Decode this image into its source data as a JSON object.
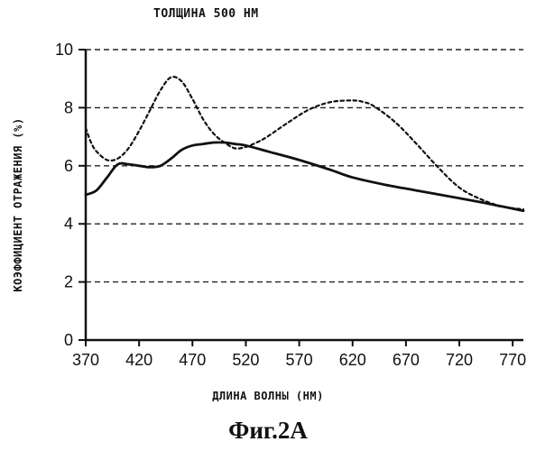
{
  "chart_data": {
    "type": "line",
    "title": "ТОЛЩИНА 500 НМ",
    "xlabel": "ДЛИНА ВОЛНЫ (НМ)",
    "ylabel": "КОЭФФИЦИЕНТ ОТРАЖЕНИЯ (%)",
    "caption": "Фиг.2А",
    "xlim": [
      370,
      780
    ],
    "ylim": [
      0,
      10
    ],
    "x_ticks": [
      370,
      420,
      470,
      520,
      570,
      620,
      670,
      720,
      770
    ],
    "y_ticks": [
      0,
      2,
      4,
      6,
      8,
      10
    ],
    "grid": "horizontal dashed",
    "series": [
      {
        "style": "solid",
        "color": "#111111",
        "x": [
          370,
          380,
          390,
          400,
          410,
          420,
          430,
          440,
          450,
          460,
          470,
          480,
          490,
          500,
          510,
          520,
          540,
          570,
          600,
          620,
          650,
          680,
          710,
          740,
          760,
          780
        ],
        "y": [
          5.0,
          5.15,
          5.6,
          6.05,
          6.05,
          6.0,
          5.95,
          6.0,
          6.25,
          6.55,
          6.7,
          6.75,
          6.8,
          6.8,
          6.75,
          6.7,
          6.5,
          6.2,
          5.85,
          5.6,
          5.35,
          5.15,
          4.95,
          4.75,
          4.6,
          4.45
        ]
      },
      {
        "style": "dashed",
        "color": "#111111",
        "x": [
          370,
          375,
          380,
          390,
          400,
          410,
          420,
          430,
          440,
          450,
          460,
          470,
          480,
          490,
          500,
          510,
          520,
          530,
          540,
          560,
          580,
          600,
          620,
          630,
          640,
          660,
          680,
          700,
          720,
          740,
          760,
          780
        ],
        "y": [
          7.3,
          6.8,
          6.5,
          6.2,
          6.25,
          6.6,
          7.2,
          7.9,
          8.6,
          9.05,
          8.9,
          8.3,
          7.6,
          7.1,
          6.8,
          6.6,
          6.65,
          6.8,
          7.0,
          7.5,
          7.95,
          8.2,
          8.25,
          8.2,
          8.05,
          7.5,
          6.75,
          5.95,
          5.25,
          4.85,
          4.6,
          4.5
        ]
      }
    ]
  },
  "colors": {
    "line": "#111111",
    "grid": "#222222",
    "background": "#ffffff"
  }
}
